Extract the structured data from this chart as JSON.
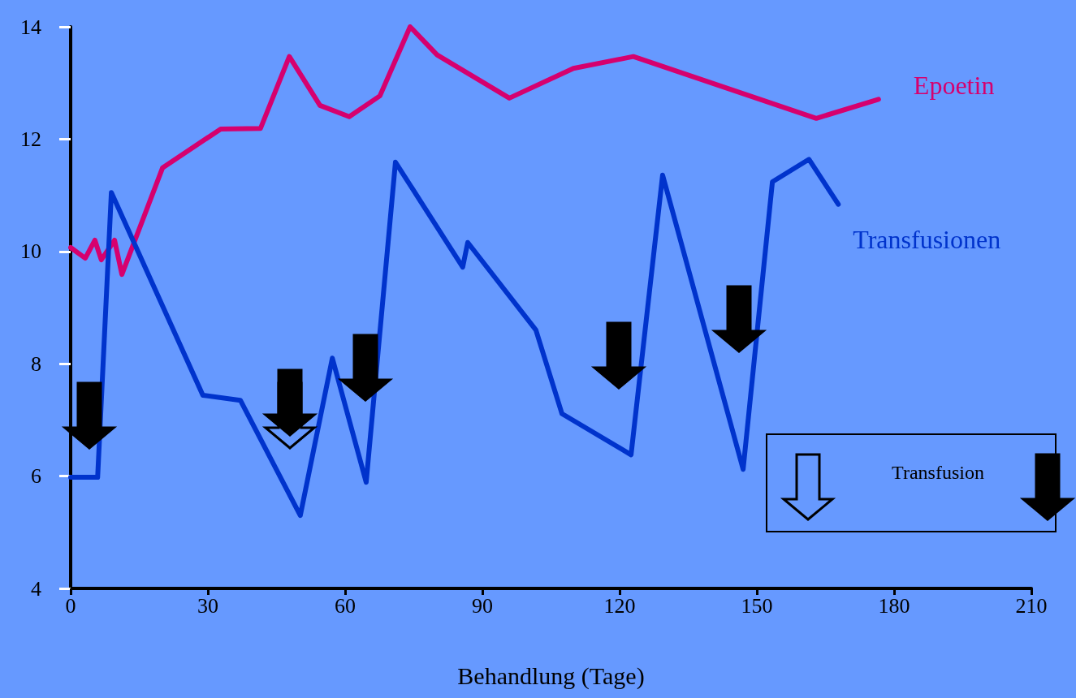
{
  "chart_data": {
    "type": "line",
    "xlabel": "Behandlung (Tage)",
    "xlim": [
      0,
      210
    ],
    "xticks": [
      0,
      30,
      60,
      90,
      120,
      150,
      180,
      210
    ],
    "ylim": [
      4,
      14
    ],
    "yticks": [
      4,
      6,
      8,
      10,
      12,
      14
    ],
    "grid": false,
    "legend": false,
    "marker": "none",
    "line_style": "solid",
    "annotations": [
      "Transfusion"
    ],
    "series": [
      {
        "name": "Epoetin",
        "color": "#d6006e",
        "x": [
          0,
          3.2,
          5.3,
          6.7,
          9.6,
          11.2,
          20.1,
          32.8,
          41.5,
          47.8,
          54.5,
          60.9,
          67.6,
          74.2,
          80.1,
          95.9,
          109.9,
          123,
          163,
          176.6
        ],
        "values": [
          10.07,
          9.88,
          10.2,
          9.85,
          10.2,
          9.59,
          11.49,
          12.18,
          12.19,
          13.47,
          12.6,
          12.4,
          12.77,
          14,
          13.5,
          12.73,
          13.26,
          13.47,
          12.37,
          12.71
        ]
      },
      {
        "name": "Transfusionen",
        "color": "#0033cc",
        "x": [
          0,
          5.9,
          8.9,
          28.9,
          37.1,
          50.2,
          57.2,
          64.6,
          71,
          85.7,
          86.8,
          101.7,
          107.4,
          122.5,
          129.4,
          147,
          153.4,
          161.4,
          167.8
        ],
        "values": [
          5.98,
          5.98,
          11.05,
          7.44,
          7.35,
          5.3,
          8.1,
          5.89,
          11.59,
          9.72,
          10.16,
          8.6,
          7.11,
          6.38,
          11.36,
          6.12,
          11.24,
          11.64,
          10.84
        ]
      }
    ]
  }
}
